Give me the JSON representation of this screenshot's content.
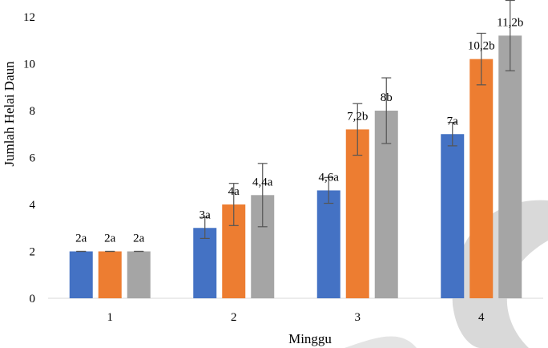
{
  "chart_data": {
    "type": "bar",
    "categories": [
      "1",
      "2",
      "3",
      "4"
    ],
    "series": [
      {
        "color": "#4472C4",
        "values": [
          2,
          3,
          4.6,
          7
        ],
        "errors": [
          0,
          0.45,
          0.55,
          0.5
        ],
        "labels": [
          "2a",
          "3a",
          "4,6a",
          "7a"
        ]
      },
      {
        "color": "#ED7D31",
        "values": [
          2,
          4,
          7.2,
          10.2
        ],
        "errors": [
          0,
          0.9,
          1.1,
          1.1
        ],
        "labels": [
          "2a",
          "4a",
          "7,2b",
          "10,2b"
        ]
      },
      {
        "color": "#A5A5A5",
        "values": [
          2,
          4.4,
          8,
          11.2
        ],
        "errors": [
          0,
          1.35,
          1.4,
          1.5
        ],
        "labels": [
          "2a",
          "4,4a",
          "8b",
          "11,2b"
        ]
      }
    ],
    "xlabel": "Minggu",
    "ylabel": "Jumlah Helai Daun",
    "ylim": [
      0,
      12
    ],
    "yticks": [
      "0",
      "2",
      "4",
      "6",
      "8",
      "10",
      "12"
    ],
    "grid": false,
    "legend": "none"
  }
}
